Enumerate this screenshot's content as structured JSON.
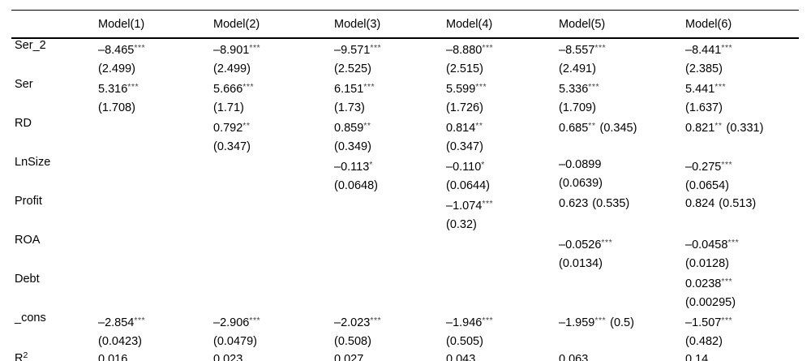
{
  "table": {
    "columns": [
      "",
      "Model(1)",
      "Model(2)",
      "Model(3)",
      "Model(4)",
      "Model(5)",
      "Model(6)"
    ],
    "rows": [
      {
        "label": "Ser_2",
        "cells": [
          {
            "coef": "–8.465",
            "stars": "***",
            "se_below": "(2.499)"
          },
          {
            "coef": "–8.901",
            "stars": "***",
            "se_below": "(2.499)"
          },
          {
            "coef": "–9.571",
            "stars": "***",
            "se_below": "(2.525)"
          },
          {
            "coef": "–8.880",
            "stars": "***",
            "se_below": "(2.515)"
          },
          {
            "coef": "–8.557",
            "stars": "***",
            "se_below": "(2.491)"
          },
          {
            "coef": "–8.441",
            "stars": "***",
            "se_below": "(2.385)"
          }
        ]
      },
      {
        "label": "Ser",
        "cells": [
          {
            "coef": "5.316",
            "stars": "***",
            "se_below": "(1.708)"
          },
          {
            "coef": "5.666",
            "stars": "***",
            "se_below": "(1.71)"
          },
          {
            "coef": "6.151",
            "stars": "***",
            "se_below": "(1.73)"
          },
          {
            "coef": "5.599",
            "stars": "***",
            "se_below": "(1.726)"
          },
          {
            "coef": "5.336",
            "stars": "***",
            "se_below": "(1.709)"
          },
          {
            "coef": "5.441",
            "stars": "***",
            "se_below": "(1.637)"
          }
        ]
      },
      {
        "label": "RD",
        "cells": [
          null,
          {
            "coef": "0.792",
            "stars": "**",
            "se_below": "(0.347)"
          },
          {
            "coef": "0.859",
            "stars": "**",
            "se_below": "(0.349)"
          },
          {
            "coef": "0.814",
            "stars": "**",
            "se_below": "(0.347)"
          },
          {
            "coef": "0.685",
            "stars": "**",
            "se_inline": "(0.345)"
          },
          {
            "coef": "0.821",
            "stars": "**",
            "se_inline": "(0.331)"
          }
        ]
      },
      {
        "label": "LnSize",
        "cells": [
          null,
          null,
          {
            "coef": "–0.113",
            "stars": "*",
            "se_below": "(0.0648)"
          },
          {
            "coef": "–0.110",
            "stars": "*",
            "se_below": "(0.0644)"
          },
          {
            "coef": "–0.0899",
            "stars": "",
            "se_below": "(0.0639)"
          },
          {
            "coef": "–0.275",
            "stars": "***",
            "se_below": "(0.0654)"
          }
        ]
      },
      {
        "label": "Profit",
        "cells": [
          null,
          null,
          null,
          {
            "coef": "–1.074",
            "stars": "***",
            "se_below": "(0.32)"
          },
          {
            "coef": "0.623",
            "stars": "",
            "se_inline": "(0.535)"
          },
          {
            "coef": "0.824",
            "stars": "",
            "se_inline": "(0.513)"
          }
        ]
      },
      {
        "label": "ROA",
        "cells": [
          null,
          null,
          null,
          null,
          {
            "coef": "–0.0526",
            "stars": "***",
            "se_below": "(0.0134)"
          },
          {
            "coef": "–0.0458",
            "stars": "***",
            "se_below": "(0.0128)"
          }
        ]
      },
      {
        "label": "Debt",
        "cells": [
          null,
          null,
          null,
          null,
          null,
          {
            "coef": "0.0238",
            "stars": "***",
            "se_below": "(0.00295)"
          }
        ]
      },
      {
        "label": "_cons",
        "cells": [
          {
            "coef": "–2.854",
            "stars": "***",
            "se_below": "(0.0423)"
          },
          {
            "coef": "–2.906",
            "stars": "***",
            "se_below": "(0.0479)"
          },
          {
            "coef": "–2.023",
            "stars": "***",
            "se_below": "(0.508)"
          },
          {
            "coef": "–1.946",
            "stars": "***",
            "se_below": "(0.505)"
          },
          {
            "coef": "–1.959",
            "stars": "***",
            "se_inline": "(0.5)"
          },
          {
            "coef": "–1.507",
            "stars": "***",
            "se_below": "(0.482)"
          }
        ]
      },
      {
        "label": "R",
        "label_sup": "2",
        "single": true,
        "cells": [
          "0.016",
          "0.023",
          "0.027",
          "0.043",
          "0.063",
          "0.14"
        ]
      }
    ]
  }
}
